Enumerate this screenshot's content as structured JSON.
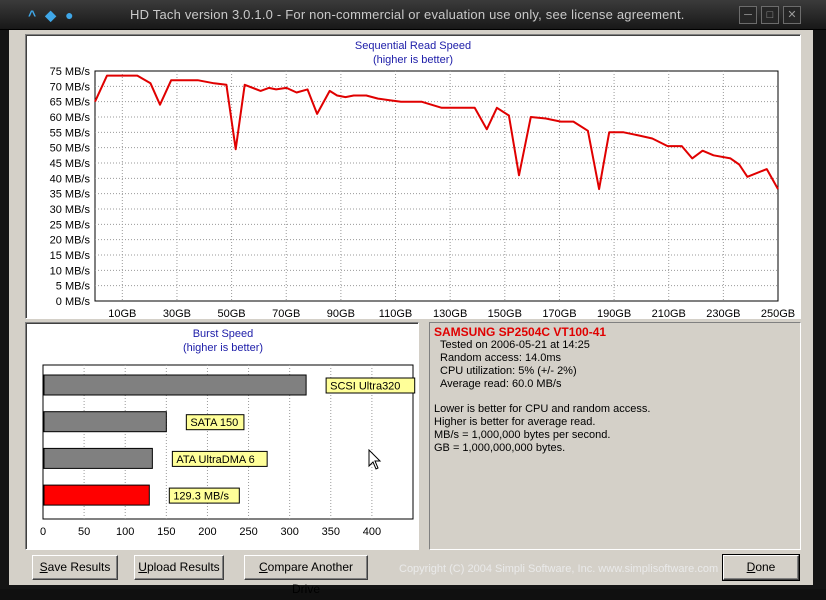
{
  "titlebar": {
    "title": "HD Tach version 3.0.1.0  - For non-commercial or evaluation use only, see license agreement.",
    "logo_icons": [
      "chevron-up-icon",
      "diamond-icon",
      "alien-icon"
    ],
    "buttons": [
      "minimize",
      "maximize",
      "close"
    ],
    "minimize_glyph": "─",
    "maximize_glyph": "□",
    "close_glyph": "✕"
  },
  "seq_chart": {
    "title": "Sequential Read Speed",
    "subtitle": "(higher is better)",
    "line_color": "#e00000"
  },
  "burst_chart": {
    "title": "Burst Speed",
    "subtitle": "(higher is better)"
  },
  "chart_data": [
    {
      "type": "line",
      "title": "Sequential Read Speed",
      "subtitle": "(higher is better)",
      "xlim": [
        0,
        250
      ],
      "ylim": [
        0,
        75
      ],
      "y_ticks": [
        "0 MB/s",
        "5 MB/s",
        "10 MB/s",
        "15 MB/s",
        "20 MB/s",
        "25 MB/s",
        "30 MB/s",
        "35 MB/s",
        "40 MB/s",
        "45 MB/s",
        "50 MB/s",
        "55 MB/s",
        "60 MB/s",
        "65 MB/s",
        "70 MB/s",
        "75 MB/s"
      ],
      "x_ticks": [
        "10GB",
        "30GB",
        "50GB",
        "70GB",
        "90GB",
        "110GB",
        "130GB",
        "150GB",
        "170GB",
        "190GB",
        "210GB",
        "230GB",
        "250GB"
      ],
      "grid": true,
      "x": [
        0,
        4.4,
        10.4,
        15.5,
        20.3,
        23.8,
        27.9,
        31.6,
        37.6,
        43.6,
        48.1,
        51.5,
        54.8,
        60.6,
        63.6,
        66.3,
        70.1,
        73.8,
        77.8,
        81.3,
        85.9,
        88.6,
        91.7,
        94.7,
        99.3,
        103.6,
        107.5,
        112.0,
        119.5,
        126.9,
        131.8,
        139.0,
        143.4,
        147.1,
        151.5,
        155.2,
        159.5,
        165.0,
        170.5,
        175.1,
        180.4,
        184.5,
        188.2,
        193.5,
        198.9,
        204.0,
        209.6,
        214.8,
        218.6,
        222.4,
        226.4,
        232.6,
        235.8,
        238.8,
        245.9,
        250
      ],
      "y": [
        65.0,
        73.5,
        73.5,
        73.5,
        71.0,
        64.0,
        72.0,
        72.0,
        72.0,
        71.0,
        70.5,
        49.5,
        70.5,
        68.5,
        69.5,
        69.0,
        69.5,
        68.0,
        69.0,
        61.0,
        68.5,
        67.0,
        66.5,
        67.0,
        67.0,
        66.0,
        65.5,
        65.0,
        65.0,
        63.0,
        63.0,
        63.0,
        56.0,
        63.0,
        60.5,
        41.0,
        60.0,
        59.5,
        58.5,
        58.5,
        55.5,
        36.5,
        55.0,
        55.0,
        54.0,
        53.0,
        50.5,
        50.5,
        46.5,
        49.0,
        47.5,
        46.5,
        44.5,
        40.5,
        43.0,
        36.5
      ]
    },
    {
      "type": "bar",
      "title": "Burst Speed",
      "subtitle": "(higher is better)",
      "orientation": "horizontal",
      "xlim": [
        0,
        450
      ],
      "x_ticks": [
        "0",
        "50",
        "100",
        "150",
        "200",
        "250",
        "300",
        "350",
        "400"
      ],
      "grid": true,
      "categories": [
        "SCSI Ultra320",
        "SATA 150",
        "ATA UltraDMA 6",
        "129.3 MB/s"
      ],
      "values": [
        320,
        150,
        133,
        129.3
      ],
      "colors": [
        "#808080",
        "#808080",
        "#808080",
        "#ff0000"
      ],
      "label_bg": "#ffff99"
    }
  ],
  "info": {
    "drive_name": "SAMSUNG SP2504C VT100-41",
    "tested_on": "Tested on 2006-05-21 at 14:25",
    "random_access": "Random access: 14.0ms",
    "cpu_utilization": "CPU utilization: 5% (+/- 2%)",
    "average_read": "Average read: 60.0 MB/s",
    "note1": "Lower is better for CPU and random access.",
    "note2": "Higher is better for average read.",
    "note3": "MB/s = 1,000,000 bytes per second.",
    "note4": "GB = 1,000,000,000 bytes.",
    "drive_color": "#e00000"
  },
  "buttons": {
    "save_hot": "S",
    "save_rest": "ave Results",
    "upload_hot": "U",
    "upload_rest": "pload Results",
    "compare_hot": "C",
    "compare_rest": "ompare Another Drive",
    "done_hot": "D",
    "done_rest": "one"
  },
  "copyright": "Copyright (C) 2004 Simpli Software, Inc. www.simplisoftware.com"
}
